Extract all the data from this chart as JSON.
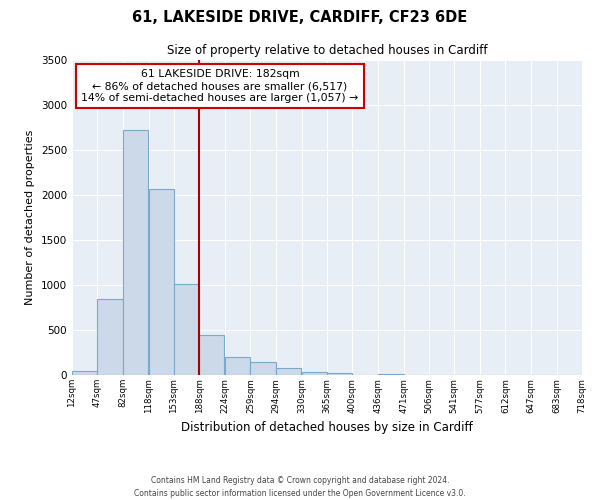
{
  "title": "61, LAKESIDE DRIVE, CARDIFF, CF23 6DE",
  "subtitle": "Size of property relative to detached houses in Cardiff",
  "xlabel": "Distribution of detached houses by size in Cardiff",
  "ylabel": "Number of detached properties",
  "bar_lefts": [
    12,
    47,
    82,
    118,
    153,
    188,
    224,
    259,
    294,
    330,
    365,
    400,
    436,
    471,
    506,
    541,
    577,
    612,
    647,
    683
  ],
  "bar_widths": [
    35,
    35,
    35,
    35,
    35,
    35,
    35,
    35,
    35,
    35,
    35,
    35,
    35,
    35,
    35,
    35,
    35,
    35,
    35,
    35
  ],
  "bar_heights": [
    50,
    850,
    2720,
    2070,
    1010,
    450,
    200,
    140,
    80,
    30,
    20,
    0,
    15,
    0,
    0,
    0,
    0,
    0,
    0,
    0
  ],
  "bar_color": "#ccd9e8",
  "bar_edge_color": "#7aaacb",
  "vline_x": 188,
  "vline_color": "#aa0000",
  "xlim": [
    12,
    718
  ],
  "ylim": [
    0,
    3500
  ],
  "yticks": [
    0,
    500,
    1000,
    1500,
    2000,
    2500,
    3000,
    3500
  ],
  "xtick_positions": [
    12,
    47,
    82,
    118,
    153,
    188,
    224,
    259,
    294,
    330,
    365,
    400,
    436,
    471,
    506,
    541,
    577,
    612,
    647,
    683,
    718
  ],
  "xtick_labels": [
    "12sqm",
    "47sqm",
    "82sqm",
    "118sqm",
    "153sqm",
    "188sqm",
    "224sqm",
    "259sqm",
    "294sqm",
    "330sqm",
    "365sqm",
    "400sqm",
    "436sqm",
    "471sqm",
    "506sqm",
    "541sqm",
    "577sqm",
    "612sqm",
    "647sqm",
    "683sqm",
    "718sqm"
  ],
  "annotation_title": "61 LAKESIDE DRIVE: 182sqm",
  "annotation_line1": "← 86% of detached houses are smaller (6,517)",
  "annotation_line2": "14% of semi-detached houses are larger (1,057) →",
  "annotation_box_color": "#ffffff",
  "annotation_box_edge_color": "#cc0000",
  "footer_line1": "Contains HM Land Registry data © Crown copyright and database right 2024.",
  "footer_line2": "Contains public sector information licensed under the Open Government Licence v3.0.",
  "background_color": "#ffffff",
  "plot_bg_color": "#e8eef5",
  "grid_color": "#ffffff"
}
